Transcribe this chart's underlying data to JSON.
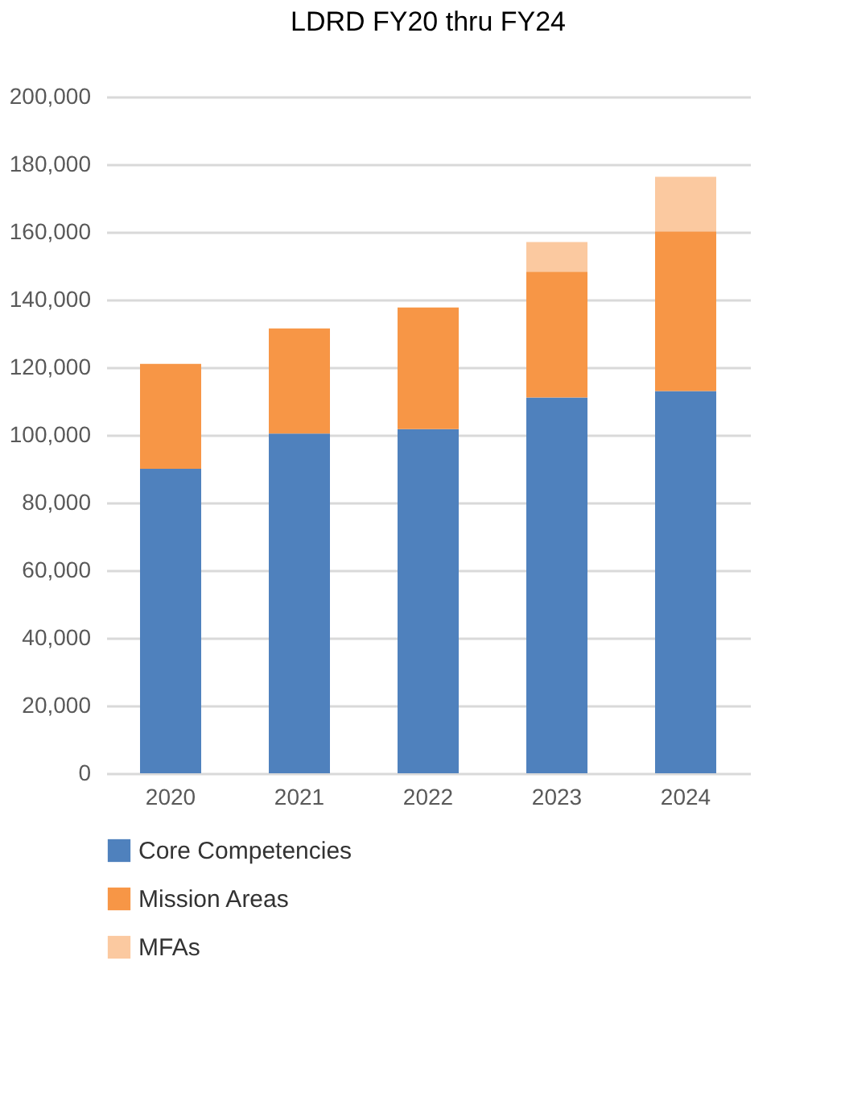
{
  "chart_data": {
    "type": "bar",
    "title": "LDRD FY20 thru FY24",
    "stacked": true,
    "categories": [
      "2020",
      "2021",
      "2022",
      "2023",
      "2024"
    ],
    "series": [
      {
        "name": "Core Competencies",
        "color": "#4f81bd",
        "values": [
          90000,
          100400,
          101700,
          111100,
          113000
        ]
      },
      {
        "name": "Mission Areas",
        "color": "#f79646",
        "values": [
          31000,
          31100,
          36000,
          37200,
          47200
        ]
      },
      {
        "name": "MFAs",
        "color": "#fbc9a0",
        "values": [
          null,
          null,
          null,
          8700,
          16100
        ]
      }
    ],
    "ylim": [
      0,
      200000
    ],
    "yticks": [
      0,
      {
        "value": 20000,
        "label": "20,000"
      },
      {
        "value": 40000,
        "label": "40,000"
      },
      {
        "value": 60000,
        "label": "60,000"
      },
      {
        "value": 80000,
        "label": "80,000"
      },
      {
        "value": 100000,
        "label": "100,000"
      },
      {
        "value": 120000,
        "label": "120,000"
      },
      {
        "value": 140000,
        "label": "140,000"
      },
      {
        "value": 160000,
        "label": "160,000"
      },
      {
        "value": 180000,
        "label": "180,000"
      },
      {
        "value": 200000,
        "label": "200,000"
      }
    ],
    "grid": "y",
    "legend": "bottom"
  }
}
